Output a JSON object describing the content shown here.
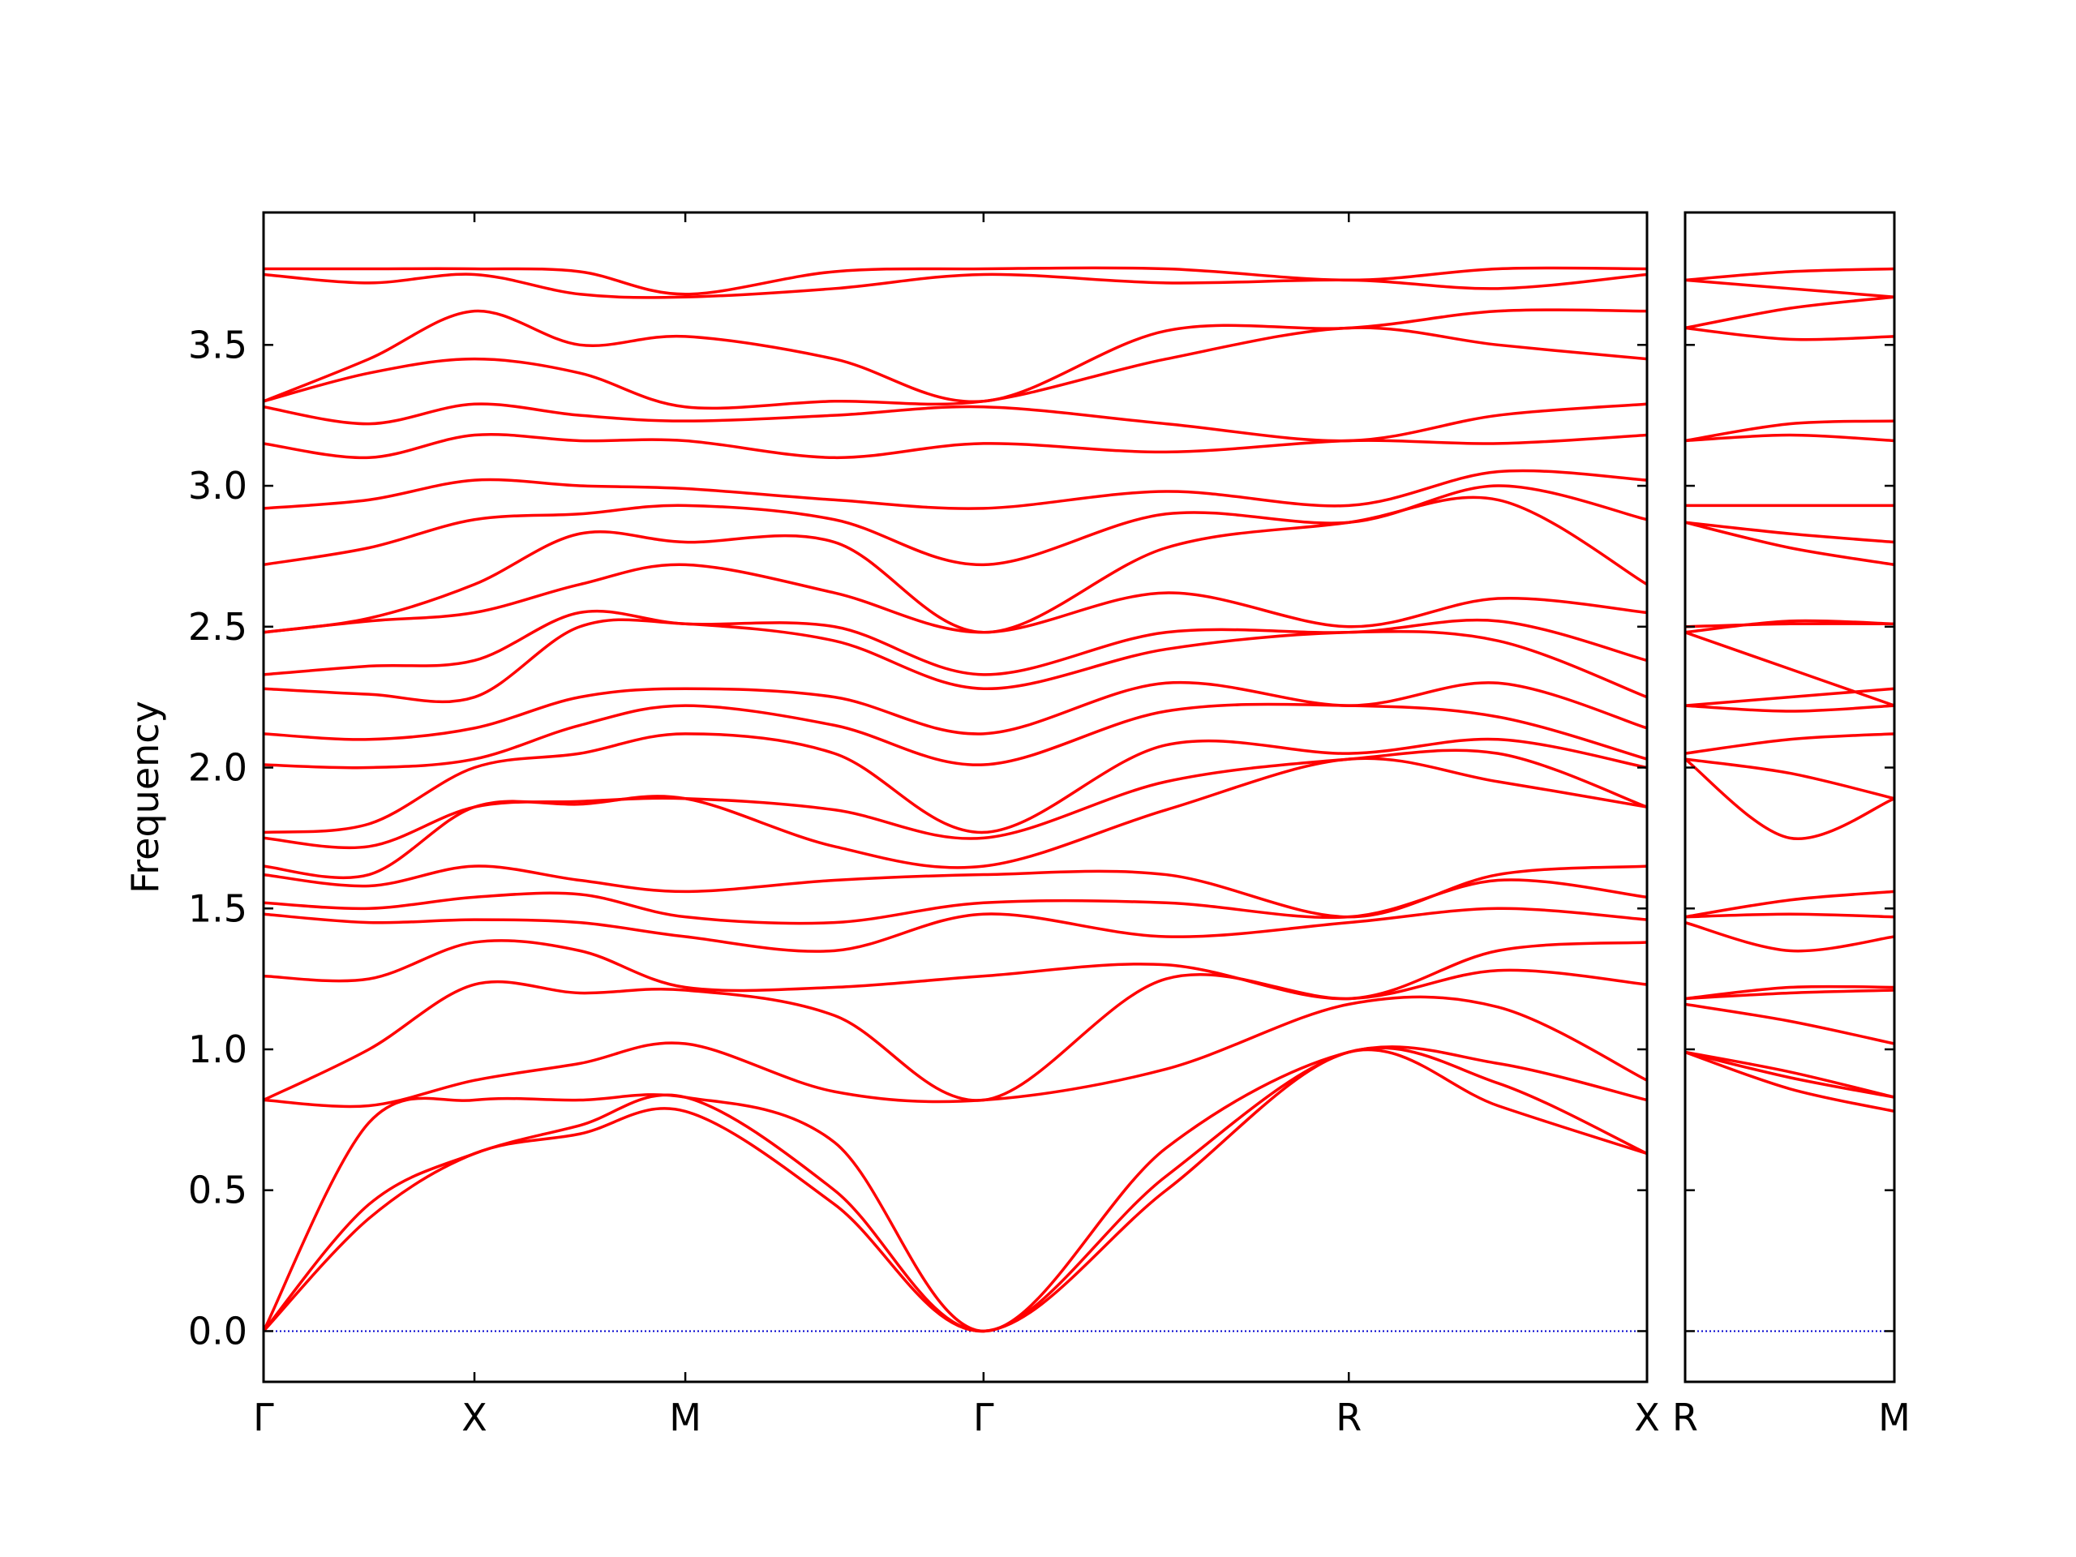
{
  "chart_data": [
    {
      "type": "line",
      "ylabel": "Frequency",
      "color": "#ff0000",
      "zero_line_color": "#0000cc",
      "xlim": [
        0,
        3.2802
      ],
      "ylim": [
        -0.18,
        3.97
      ],
      "xticks": [
        {
          "value": 0,
          "label": "Γ"
        },
        {
          "value": 0.5,
          "label": "X"
        },
        {
          "value": 1.0,
          "label": "M"
        },
        {
          "value": 1.7071,
          "label": "Γ"
        },
        {
          "value": 2.5731,
          "label": "R"
        },
        {
          "value": 3.2802,
          "label": "X"
        }
      ],
      "yticks": [
        {
          "value": 0,
          "label": "0.0"
        },
        0.5,
        {
          "value": 1,
          "label": "1.0"
        },
        1.5,
        {
          "value": 2,
          "label": "2.0"
        },
        2.5,
        {
          "value": 3,
          "label": "3.0"
        },
        3.5
      ],
      "x": [
        0,
        0.25,
        0.5,
        0.75,
        1.0,
        1.3536,
        1.7071,
        2.1401,
        2.5731,
        2.9267,
        3.2802
      ],
      "series": [
        {
          "values": [
            0,
            0.4,
            0.63,
            0.7,
            0.78,
            0.45,
            0,
            0.5,
            0.99,
            0.8,
            0.63
          ]
        },
        {
          "values": [
            0,
            0.45,
            0.63,
            0.73,
            0.83,
            0.5,
            0,
            0.55,
            0.99,
            0.88,
            0.63
          ]
        },
        {
          "values": [
            0,
            0.74,
            0.82,
            0.82,
            0.83,
            0.67,
            0,
            0.65,
            0.99,
            0.95,
            0.82
          ]
        },
        {
          "values": [
            0.82,
            0.8,
            0.89,
            0.95,
            1.02,
            0.85,
            0.82,
            0.93,
            1.16,
            1.15,
            0.89
          ]
        },
        {
          "values": [
            0.82,
            1.0,
            1.23,
            1.2,
            1.21,
            1.12,
            0.82,
            1.25,
            1.18,
            1.28,
            1.23
          ]
        },
        {
          "values": [
            1.26,
            1.25,
            1.38,
            1.35,
            1.22,
            1.22,
            1.26,
            1.3,
            1.18,
            1.35,
            1.38
          ]
        },
        {
          "values": [
            1.48,
            1.45,
            1.46,
            1.45,
            1.4,
            1.35,
            1.48,
            1.4,
            1.45,
            1.5,
            1.46
          ]
        },
        {
          "values": [
            1.52,
            1.5,
            1.54,
            1.55,
            1.47,
            1.45,
            1.52,
            1.52,
            1.47,
            1.6,
            1.54
          ]
        },
        {
          "values": [
            1.62,
            1.58,
            1.65,
            1.6,
            1.56,
            1.6,
            1.62,
            1.62,
            1.47,
            1.62,
            1.65
          ]
        },
        {
          "values": [
            1.65,
            1.62,
            1.86,
            1.87,
            1.89,
            1.72,
            1.65,
            1.85,
            2.03,
            1.95,
            1.86
          ]
        },
        {
          "values": [
            1.75,
            1.72,
            1.86,
            1.88,
            1.89,
            1.85,
            1.75,
            1.95,
            2.03,
            2.05,
            1.86
          ]
        },
        {
          "values": [
            1.77,
            1.8,
            2.0,
            2.05,
            2.12,
            2.05,
            1.77,
            2.08,
            2.05,
            2.1,
            2.0
          ]
        },
        {
          "values": [
            2.01,
            2.0,
            2.03,
            2.15,
            2.22,
            2.15,
            2.01,
            2.2,
            2.22,
            2.18,
            2.03
          ]
        },
        {
          "values": [
            2.12,
            2.1,
            2.14,
            2.25,
            2.28,
            2.25,
            2.12,
            2.3,
            2.22,
            2.3,
            2.14
          ]
        },
        {
          "values": [
            2.28,
            2.26,
            2.25,
            2.5,
            2.51,
            2.45,
            2.28,
            2.42,
            2.48,
            2.45,
            2.25
          ]
        },
        {
          "values": [
            2.33,
            2.36,
            2.38,
            2.55,
            2.51,
            2.5,
            2.33,
            2.48,
            2.48,
            2.52,
            2.38
          ]
        },
        {
          "values": [
            2.48,
            2.52,
            2.55,
            2.65,
            2.72,
            2.62,
            2.48,
            2.62,
            2.5,
            2.6,
            2.55
          ]
        },
        {
          "values": [
            2.48,
            2.53,
            2.65,
            2.83,
            2.8,
            2.8,
            2.48,
            2.78,
            2.87,
            2.95,
            2.65
          ]
        },
        {
          "values": [
            2.72,
            2.78,
            2.88,
            2.9,
            2.93,
            2.88,
            2.72,
            2.9,
            2.87,
            3.0,
            2.88
          ]
        },
        {
          "values": [
            2.92,
            2.95,
            3.02,
            3.0,
            2.99,
            2.95,
            2.92,
            2.98,
            2.93,
            3.05,
            3.02
          ]
        },
        {
          "values": [
            3.15,
            3.1,
            3.18,
            3.16,
            3.16,
            3.1,
            3.15,
            3.12,
            3.16,
            3.15,
            3.18
          ]
        },
        {
          "values": [
            3.28,
            3.22,
            3.29,
            3.25,
            3.23,
            3.25,
            3.28,
            3.22,
            3.16,
            3.25,
            3.29
          ]
        },
        {
          "values": [
            3.3,
            3.4,
            3.45,
            3.4,
            3.28,
            3.3,
            3.3,
            3.45,
            3.56,
            3.5,
            3.45
          ]
        },
        {
          "values": [
            3.3,
            3.45,
            3.62,
            3.5,
            3.53,
            3.45,
            3.3,
            3.55,
            3.56,
            3.62,
            3.62
          ]
        },
        {
          "values": [
            3.75,
            3.72,
            3.75,
            3.68,
            3.67,
            3.7,
            3.75,
            3.72,
            3.73,
            3.7,
            3.75
          ]
        },
        {
          "values": [
            3.77,
            3.77,
            3.77,
            3.76,
            3.68,
            3.76,
            3.77,
            3.77,
            3.73,
            3.77,
            3.77
          ]
        }
      ]
    },
    {
      "type": "line",
      "color": "#ff0000",
      "zero_line_color": "#0000cc",
      "xlim": [
        0,
        0.5
      ],
      "ylim": [
        -0.18,
        3.97
      ],
      "xticks": [
        {
          "value": 0,
          "label": "R"
        },
        {
          "value": 0.5,
          "label": "M"
        }
      ],
      "yticks": [
        0,
        0.5,
        1,
        1.5,
        2,
        2.5,
        3,
        3.5
      ],
      "x": [
        0,
        0.25,
        0.5
      ],
      "series": [
        {
          "values": [
            0.99,
            0.86,
            0.78
          ]
        },
        {
          "values": [
            0.99,
            0.9,
            0.83
          ]
        },
        {
          "values": [
            0.99,
            0.92,
            0.83
          ]
        },
        {
          "values": [
            1.16,
            1.1,
            1.02
          ]
        },
        {
          "values": [
            1.18,
            1.2,
            1.21
          ]
        },
        {
          "values": [
            1.18,
            1.22,
            1.22
          ]
        },
        {
          "values": [
            1.45,
            1.35,
            1.4
          ]
        },
        {
          "values": [
            1.47,
            1.48,
            1.47
          ]
        },
        {
          "values": [
            1.47,
            1.53,
            1.56
          ]
        },
        {
          "values": [
            2.03,
            1.98,
            1.89
          ]
        },
        {
          "values": [
            2.03,
            1.75,
            1.89
          ]
        },
        {
          "values": [
            2.05,
            2.1,
            2.12
          ]
        },
        {
          "values": [
            2.22,
            2.2,
            2.22
          ]
        },
        {
          "values": [
            2.22,
            2.25,
            2.28
          ]
        },
        {
          "values": [
            2.48,
            2.35,
            2.22
          ]
        },
        {
          "values": [
            2.48,
            2.52,
            2.51
          ]
        },
        {
          "values": [
            2.5,
            2.51,
            2.51
          ]
        },
        {
          "values": [
            2.87,
            2.78,
            2.72
          ]
        },
        {
          "values": [
            2.87,
            2.83,
            2.8
          ]
        },
        {
          "values": [
            2.93,
            2.93,
            2.93
          ]
        },
        {
          "values": [
            3.16,
            3.18,
            3.16
          ]
        },
        {
          "values": [
            3.16,
            3.22,
            3.23
          ]
        },
        {
          "values": [
            3.56,
            3.52,
            3.53
          ]
        },
        {
          "values": [
            3.56,
            3.63,
            3.67
          ]
        },
        {
          "values": [
            3.73,
            3.7,
            3.67
          ]
        },
        {
          "values": [
            3.73,
            3.76,
            3.77
          ]
        }
      ]
    }
  ]
}
